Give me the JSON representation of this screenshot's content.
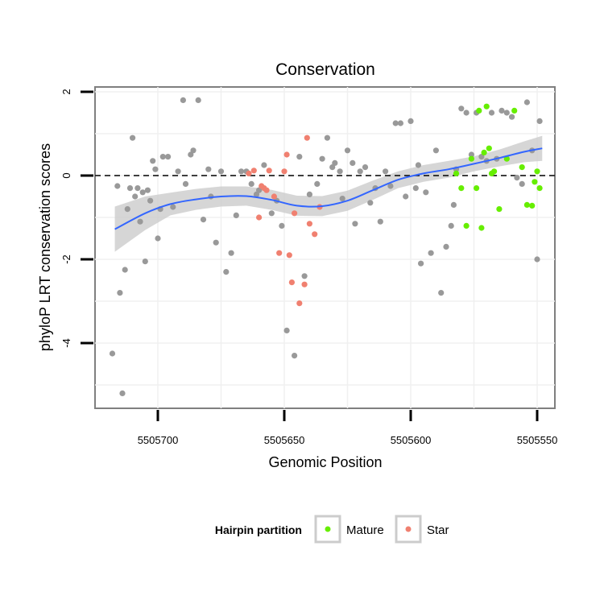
{
  "chart_data": {
    "type": "scatter",
    "title": "Conservation",
    "xlabel": "Genomic Position",
    "ylabel": "phyloP LRT conservation scores",
    "x_reversed": true,
    "xlim": [
      5505730,
      5505545
    ],
    "ylim": [
      -5.5,
      2.1
    ],
    "x_ticks": [
      5505700,
      5505650,
      5505600,
      5505550
    ],
    "x_tick_labels": [
      "5505700",
      "5505650",
      "5505600",
      "5505550"
    ],
    "y_ticks": [
      2,
      0,
      -2,
      -4
    ],
    "y_tick_labels": [
      "2",
      "0",
      "-2",
      "-4"
    ],
    "grid": true,
    "reference_line": {
      "y": 0,
      "style": "dashed"
    },
    "legend": {
      "title": "Hairpin partition",
      "position": "bottom",
      "entries": [
        {
          "label": "Mature",
          "color": "#66ee00"
        },
        {
          "label": "Star",
          "color": "#f08070"
        }
      ]
    },
    "colors": {
      "other": "#999999",
      "Mature": "#66ee00",
      "Star": "#f08070",
      "smooth": "#3366ff",
      "ribbon": "#cccccc"
    },
    "smooth_line": {
      "x": [
        5505717,
        5505705,
        5505695,
        5505685,
        5505675,
        5505665,
        5505655,
        5505645,
        5505635,
        5505625,
        5505615,
        5505605,
        5505595,
        5505585,
        5505575,
        5505565,
        5505555,
        5505548
      ],
      "y": [
        -1.28,
        -0.9,
        -0.68,
        -0.57,
        -0.5,
        -0.49,
        -0.58,
        -0.72,
        -0.73,
        -0.6,
        -0.35,
        -0.1,
        0.05,
        0.15,
        0.28,
        0.42,
        0.57,
        0.65
      ],
      "lower": [
        -1.82,
        -1.3,
        -0.95,
        -0.82,
        -0.74,
        -0.72,
        -0.82,
        -0.96,
        -0.97,
        -0.84,
        -0.58,
        -0.3,
        -0.15,
        -0.05,
        0.1,
        0.22,
        0.32,
        0.35
      ],
      "upper": [
        -0.74,
        -0.5,
        -0.41,
        -0.32,
        -0.26,
        -0.26,
        -0.34,
        -0.48,
        -0.49,
        -0.36,
        -0.12,
        0.1,
        0.25,
        0.35,
        0.46,
        0.62,
        0.82,
        0.95
      ]
    },
    "series": [
      {
        "name": "other",
        "x": [
          5505718,
          5505716,
          5505715,
          5505714,
          5505713,
          5505712,
          5505711,
          5505710,
          5505709,
          5505708,
          5505707,
          5505706,
          5505705,
          5505704,
          5505703,
          5505702,
          5505701,
          5505700,
          5505699,
          5505698,
          5505696,
          5505694,
          5505692,
          5505690,
          5505689,
          5505687,
          5505686,
          5505684,
          5505682,
          5505680,
          5505679,
          5505677,
          5505675,
          5505673,
          5505671,
          5505669,
          5505667,
          5505665,
          5505663,
          5505661,
          5505660,
          5505658,
          5505655,
          5505653,
          5505651,
          5505649,
          5505646,
          5505644,
          5505642,
          5505640,
          5505637,
          5505635,
          5505633,
          5505631,
          5505630,
          5505628,
          5505627,
          5505625,
          5505623,
          5505622,
          5505620,
          5505618,
          5505616,
          5505614,
          5505612,
          5505610,
          5505608,
          5505606,
          5505604,
          5505602,
          5505600,
          5505598,
          5505597,
          5505596,
          5505594,
          5505592,
          5505590,
          5505588,
          5505586,
          5505584,
          5505583,
          5505582,
          5505580,
          5505578,
          5505576,
          5505574,
          5505572,
          5505570,
          5505568,
          5505566,
          5505564,
          5505562,
          5505560,
          5505558,
          5505556,
          5505554,
          5505552,
          5505550,
          5505549
        ],
        "y": [
          -4.25,
          -0.25,
          -2.8,
          -5.2,
          -2.25,
          -0.8,
          -0.3,
          0.9,
          -0.5,
          -0.3,
          -1.1,
          -0.4,
          -2.05,
          -0.35,
          -0.6,
          0.35,
          0.15,
          -1.5,
          -0.8,
          0.45,
          0.45,
          -0.75,
          0.1,
          1.8,
          -0.2,
          0.5,
          0.6,
          1.8,
          -1.05,
          0.15,
          -0.5,
          -1.6,
          0.1,
          -2.3,
          -1.85,
          -0.95,
          0.1,
          0.1,
          -0.2,
          -0.45,
          -0.35,
          0.25,
          -0.9,
          -0.6,
          -1.2,
          -3.7,
          -4.3,
          0.45,
          -2.4,
          -0.45,
          -0.2,
          0.4,
          0.9,
          0.2,
          0.3,
          0.1,
          -0.55,
          0.6,
          0.3,
          -1.15,
          0.1,
          0.2,
          -0.65,
          -0.3,
          -1.1,
          0.1,
          -0.25,
          1.25,
          1.25,
          -0.5,
          1.3,
          -0.3,
          0.25,
          -2.1,
          -0.4,
          -1.85,
          0.6,
          -2.8,
          -1.7,
          -1.2,
          -0.7,
          0.15,
          1.6,
          1.5,
          0.5,
          1.5,
          0.45,
          0.35,
          1.5,
          0.4,
          1.55,
          1.5,
          1.4,
          -0.05,
          -0.2,
          1.75,
          0.6,
          -2.0,
          1.3
        ]
      },
      {
        "name": "Mature",
        "x": [
          5505582,
          5505580,
          5505578,
          5505576,
          5505574,
          5505573,
          5505572,
          5505571,
          5505570,
          5505569,
          5505568,
          5505567,
          5505565,
          5505562,
          5505559,
          5505556,
          5505554,
          5505552,
          5505551,
          5505550,
          5505549
        ],
        "y": [
          0.05,
          -0.3,
          -1.2,
          0.4,
          -0.3,
          1.55,
          -1.25,
          0.55,
          1.65,
          0.65,
          0.05,
          0.1,
          -0.8,
          0.4,
          1.55,
          0.2,
          -0.7,
          -0.72,
          -0.15,
          0.1,
          -0.3
        ]
      },
      {
        "name": "Star",
        "x": [
          5505664,
          5505662,
          5505660,
          5505659,
          5505658,
          5505657,
          5505656,
          5505654,
          5505652,
          5505650,
          5505649,
          5505648,
          5505647,
          5505646,
          5505644,
          5505642,
          5505641,
          5505640,
          5505638,
          5505636
        ],
        "y": [
          0.05,
          0.12,
          -1.0,
          -0.25,
          -0.3,
          -0.35,
          0.12,
          -0.5,
          -1.85,
          0.1,
          0.5,
          -1.9,
          -2.55,
          -0.9,
          -3.05,
          -2.6,
          0.9,
          -1.15,
          -1.4,
          -0.75
        ]
      }
    ]
  }
}
